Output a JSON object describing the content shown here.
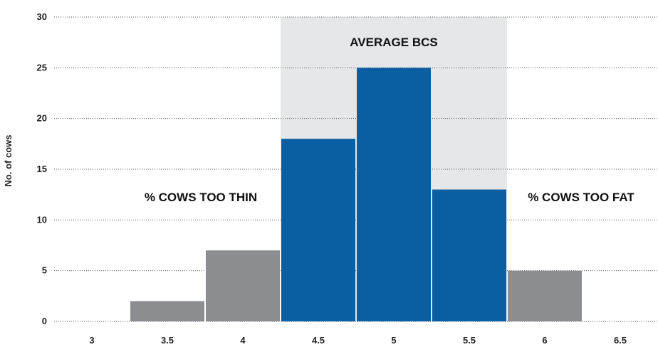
{
  "chart_data": {
    "type": "bar",
    "categories": [
      "3",
      "3.5",
      "4",
      "4.5",
      "5",
      "5.5",
      "6",
      "6.5"
    ],
    "values": [
      0,
      2,
      7,
      18,
      25,
      13,
      5,
      0
    ],
    "ylabel": "No. of cows",
    "xlabel": "",
    "ylim": [
      0,
      30
    ],
    "yticks": [
      "0",
      "5",
      "10",
      "15",
      "20",
      "25",
      "30"
    ],
    "grid": true,
    "colors": {
      "in_range": "#0a5fa3",
      "out_of_range": "#8c8d91",
      "band": "#e6e7e9"
    },
    "highlight_categories": [
      "4.5",
      "5",
      "5.5"
    ],
    "annotations": {
      "band_label": "AVERAGE BCS",
      "thin_label": "% COWS TOO THIN",
      "fat_label": "% COWS TOO FAT"
    }
  }
}
